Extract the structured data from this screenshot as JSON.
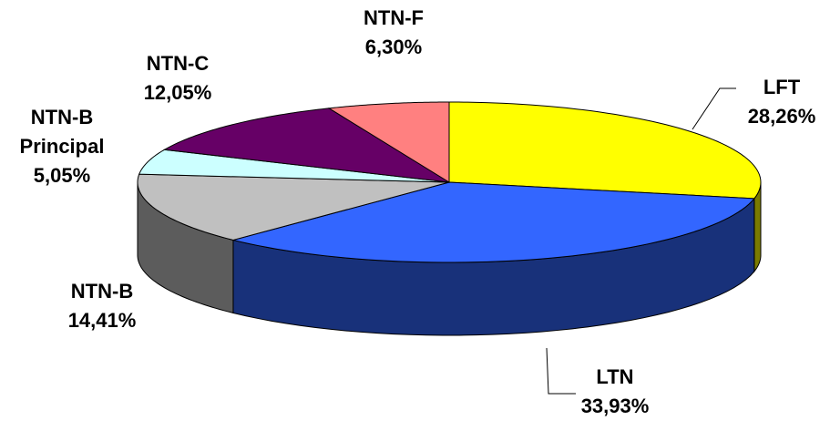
{
  "chart_data": {
    "type": "pie3d",
    "categories": [
      "LFT",
      "LTN",
      "NTN-B",
      "NTN-B Principal",
      "NTN-C",
      "NTN-F"
    ],
    "values": [
      28.26,
      33.93,
      14.41,
      5.05,
      12.05,
      6.3
    ],
    "value_labels": [
      "28,26%",
      "33,93%",
      "14,41%",
      "5,05%",
      "12,05%",
      "6,30%"
    ],
    "colors": [
      "#ffff00",
      "#3366ff",
      "#c0c0c0",
      "#ccffff",
      "#660066",
      "#ff8080"
    ]
  }
}
